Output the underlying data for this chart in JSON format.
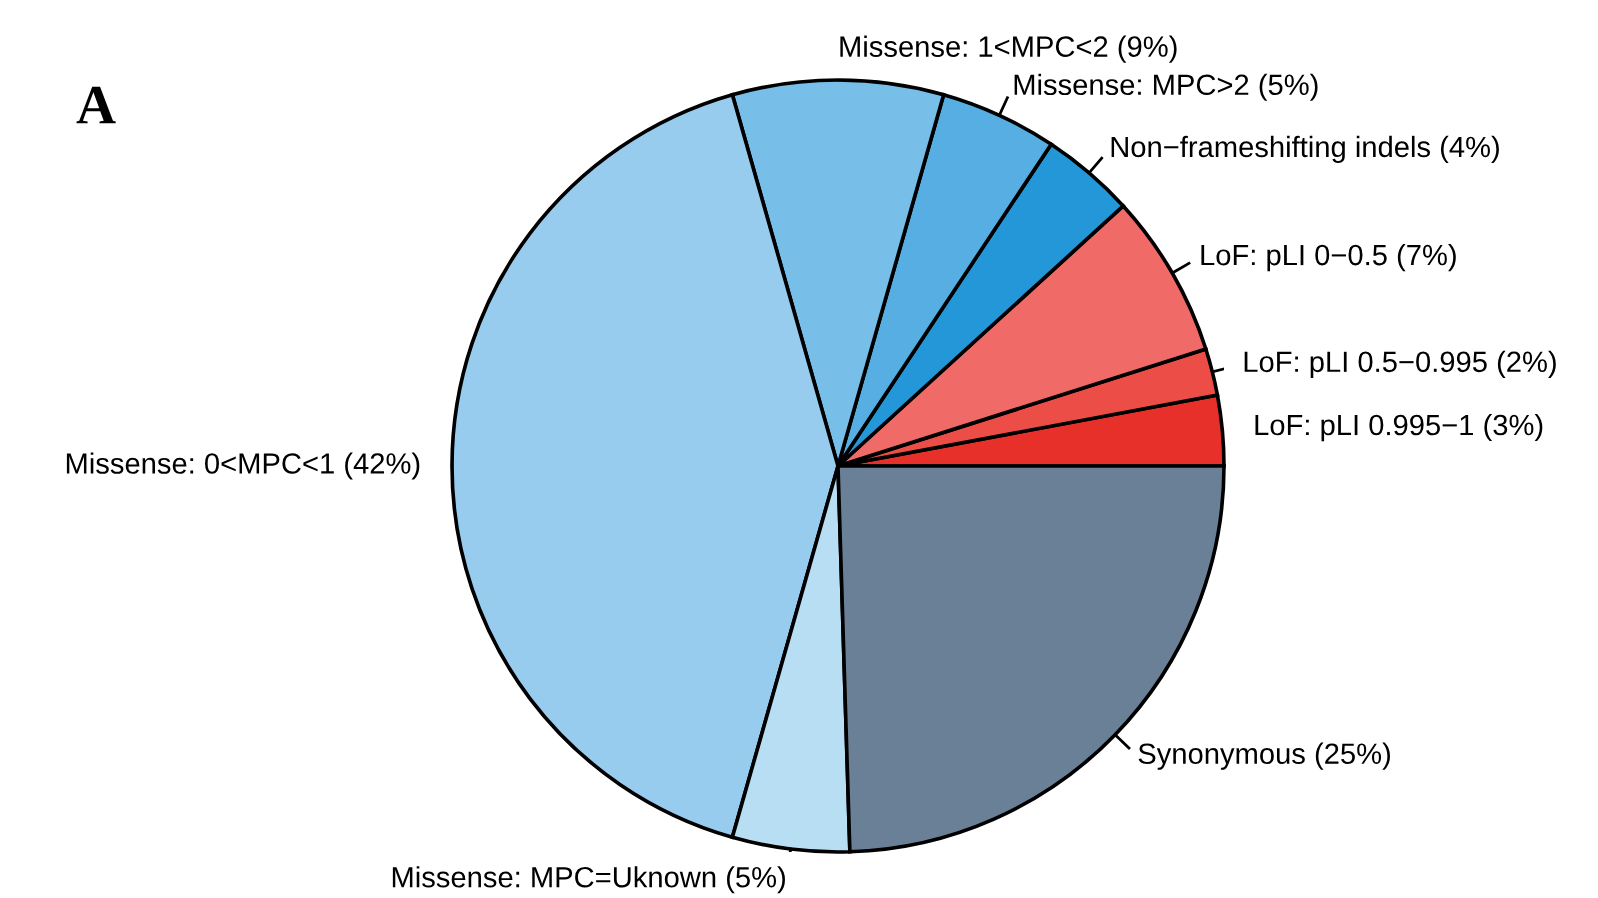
{
  "chart_data": {
    "type": "pie",
    "title": "A",
    "categories": [
      "LoF: pLI 0.995−1 (3%)",
      "LoF: pLI 0.5−0.995 (2%)",
      "LoF: pLI 0−0.5 (7%)",
      "Non−frameshifting indels (4%)",
      "Missense: MPC>2 (5%)",
      "Missense: 1<MPC<2 (9%)",
      "Missense: 0<MPC<1 (42%)",
      "Missense: MPC=Uknown (5%)",
      "Synonymous (25%)"
    ],
    "values": [
      3,
      2,
      7,
      4,
      5,
      9,
      42,
      5,
      25
    ],
    "colors": [
      "#e8302a",
      "#ec4d47",
      "#f06b68",
      "#2497d9",
      "#56aee2",
      "#77bee9",
      "#98ccee",
      "#b8def4",
      "#6a8097"
    ]
  }
}
